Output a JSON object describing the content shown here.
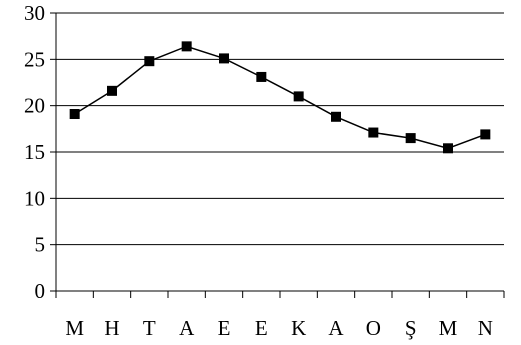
{
  "chart_data": {
    "type": "line",
    "title": "",
    "xlabel": "",
    "ylabel": "",
    "categories": [
      "M",
      "H",
      "T",
      "A",
      "E",
      "E",
      "K",
      "A",
      "O",
      "Ş",
      "M",
      "N"
    ],
    "series": [
      {
        "values": [
          19.1,
          21.6,
          24.8,
          26.4,
          25.1,
          23.1,
          21.0,
          18.8,
          17.1,
          16.5,
          15.4,
          16.9
        ]
      }
    ],
    "ylim": [
      0,
      30
    ],
    "yticks": [
      0,
      5,
      10,
      15,
      20,
      25,
      30
    ],
    "grid": true,
    "legend": "none",
    "marker": "square",
    "line_color": "#000000",
    "grid_color": "#000000"
  }
}
